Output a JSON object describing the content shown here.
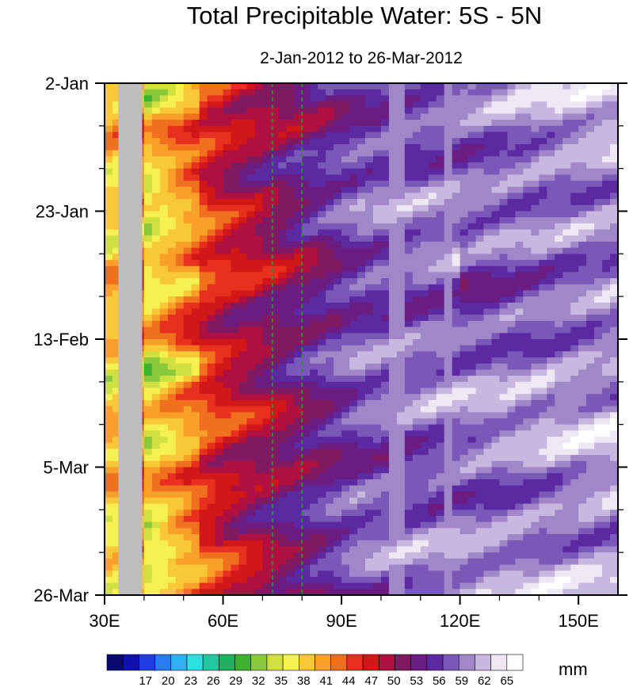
{
  "chart_data": {
    "type": "heatmap",
    "title": "Total Precipitable Water: 5S - 5N",
    "subtitle": "2-Jan-2012 to 26-Mar-2012",
    "xlabel": "",
    "ylabel": "",
    "x_range": [
      30,
      160
    ],
    "x_ticks": [
      30,
      60,
      90,
      120,
      150
    ],
    "x_tick_labels": [
      "30E",
      "60E",
      "90E",
      "120E",
      "150E"
    ],
    "y_ticks": [
      "2-Jan",
      "23-Jan",
      "13-Feb",
      "5-Mar",
      "26-Mar"
    ],
    "y_tick_days": [
      0,
      21,
      42,
      63,
      84
    ],
    "y_range_days": [
      0,
      84
    ],
    "y_direction": "top-to-bottom",
    "missing_data_longitude_range": [
      33.5,
      39.5
    ],
    "reference_lines_longitude": [
      72.5,
      80
    ],
    "reference_line_style": "dashed-green",
    "colorbar": {
      "levels": [
        17,
        20,
        23,
        26,
        29,
        32,
        35,
        38,
        41,
        44,
        47,
        50,
        53,
        56,
        59,
        62,
        65
      ],
      "units": "mm",
      "colors": [
        "#0a0a70",
        "#1010b0",
        "#1e3ce0",
        "#2a7cf0",
        "#2fb0f0",
        "#2fe0e0",
        "#20c8a0",
        "#20b060",
        "#40b030",
        "#8cc83c",
        "#d0e040",
        "#f6f050",
        "#f8c838",
        "#f8a02a",
        "#f07020",
        "#e83020",
        "#d01818",
        "#b01040",
        "#801a60",
        "#6a1c80",
        "#5c2aa0",
        "#7a58b8",
        "#a088c8",
        "#c8b8e0",
        "#eee8f4",
        "#ffffff"
      ]
    },
    "ridges": [
      {
        "lon": 104,
        "min_mm": 58,
        "max_mm": 62
      },
      {
        "lon": 117,
        "min_mm": 58,
        "max_mm": 62
      }
    ]
  }
}
